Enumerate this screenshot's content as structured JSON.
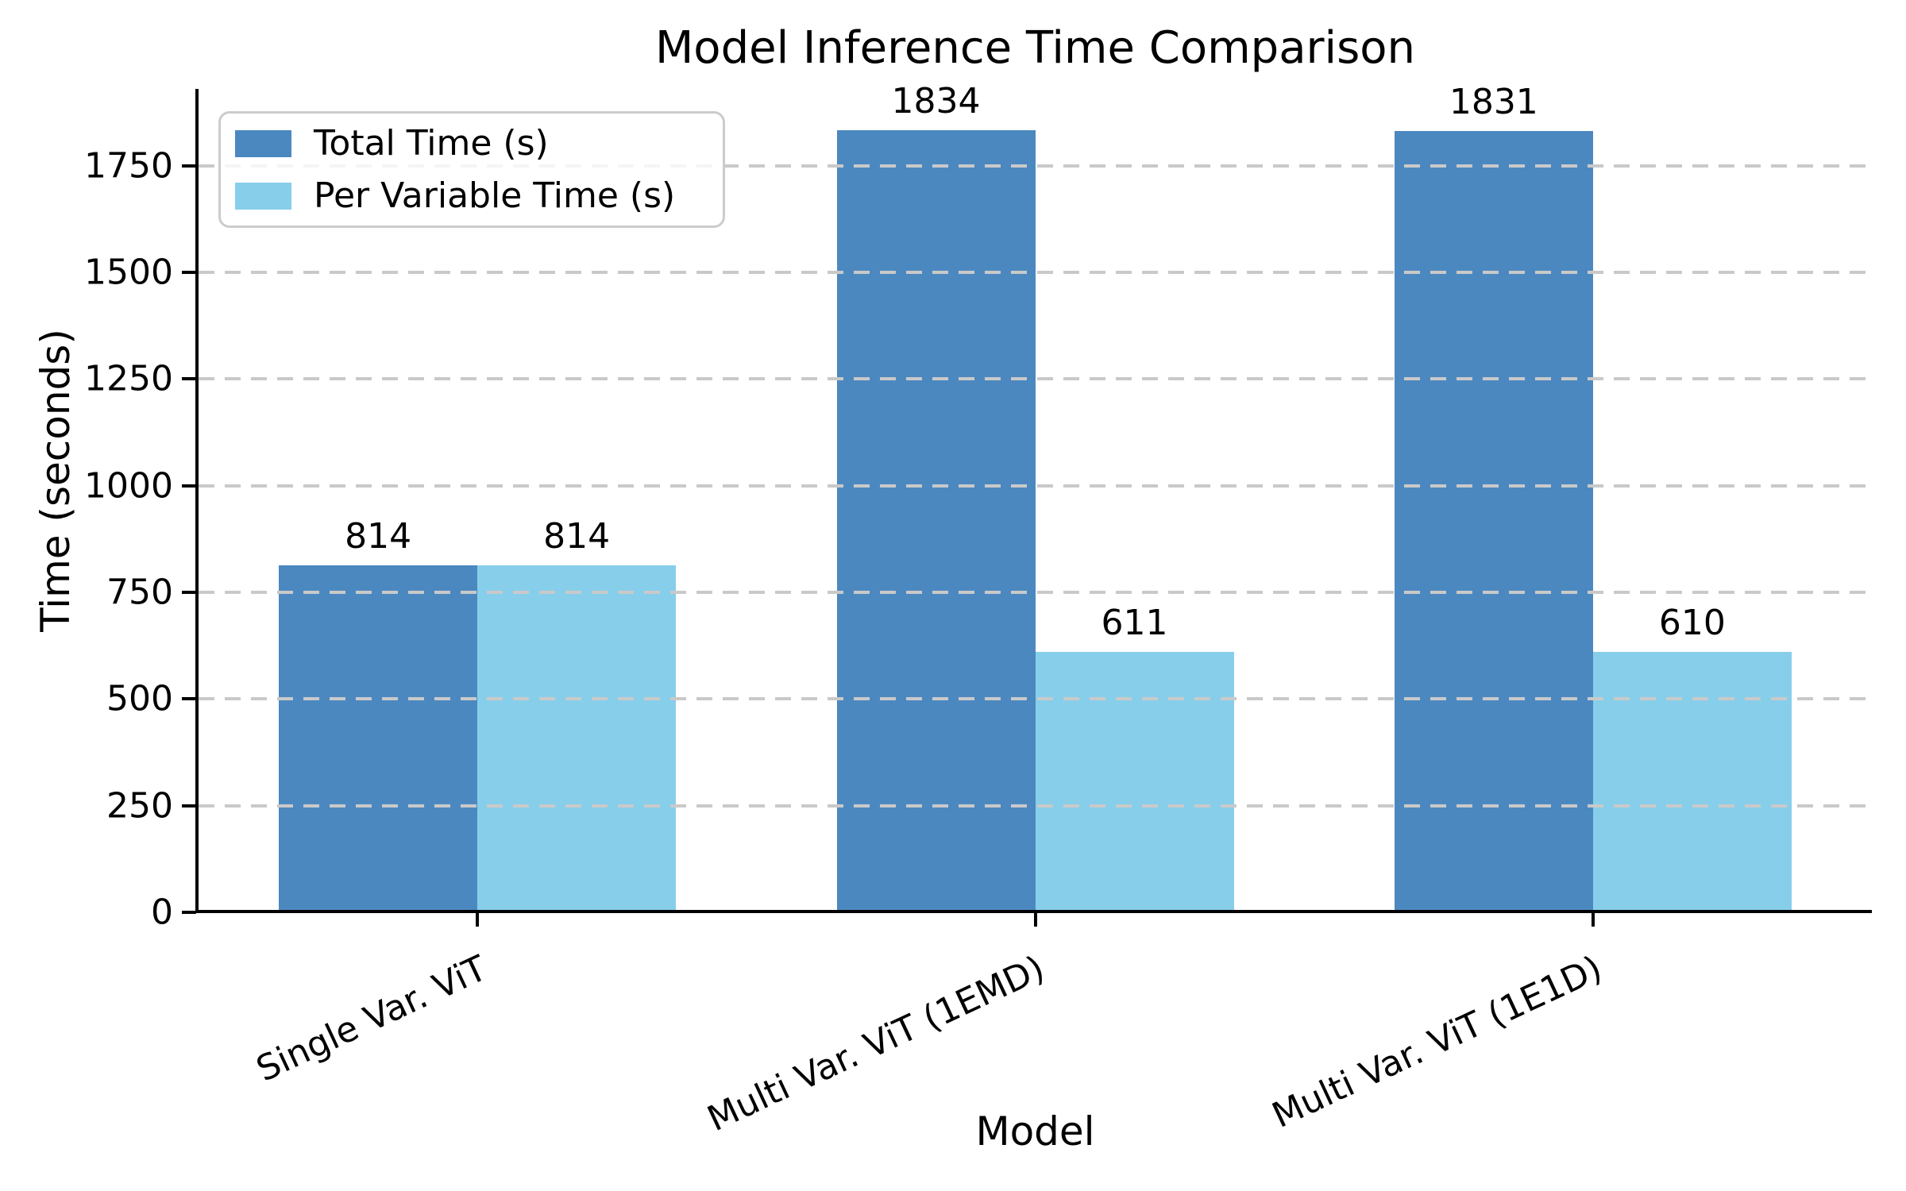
{
  "chart_data": {
    "type": "bar",
    "title": "Model Inference Time Comparison",
    "xlabel": "Model",
    "ylabel": "Time (seconds)",
    "categories": [
      "Single Var. ViT",
      "Multi Var. ViT (1EMD)",
      "Multi Var. ViT (1E1D)"
    ],
    "series": [
      {
        "name": "Total Time (s)",
        "color": "#4C88C0",
        "values": [
          814,
          1834,
          1831
        ]
      },
      {
        "name": "Per Variable Time (s)",
        "color": "#87CEEB",
        "values": [
          814,
          611,
          610
        ]
      }
    ],
    "value_labels_shown": true,
    "ylim": [
      0,
      1930
    ],
    "yticks": [
      0,
      250,
      500,
      750,
      1000,
      1250,
      1500,
      1750
    ],
    "grid": {
      "axis": "y",
      "style": "dashed",
      "color": "#C9C9C9"
    },
    "legend": {
      "position": "upper left"
    },
    "xtick_rotation_deg": 25
  },
  "colors": {
    "background": "#FFFFFF",
    "axis": "#000000",
    "text": "#000000",
    "legend_border": "#CCCCCC"
  }
}
